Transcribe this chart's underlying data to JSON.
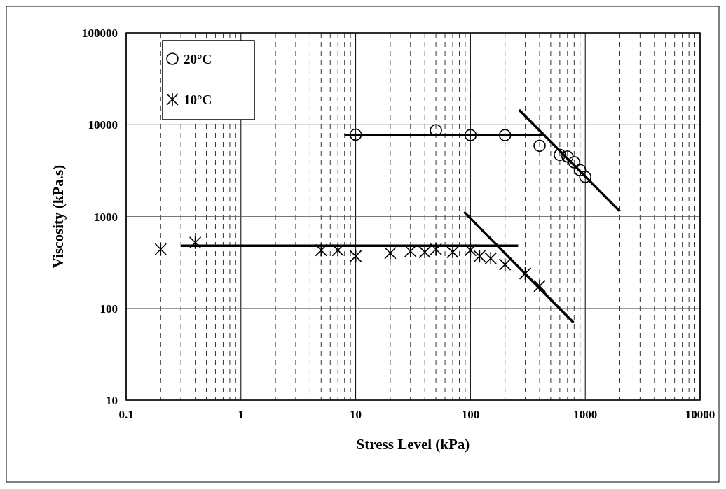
{
  "chart_data": {
    "type": "scatter",
    "xlabel": "Stress Level (kPa)",
    "ylabel": "Viscosity (kPa.s)",
    "log": "xy",
    "grid": true,
    "legend": "top left",
    "xlim": [
      0.1,
      10000
    ],
    "ylim": [
      10,
      100000
    ],
    "xticks": [
      0.1,
      {
        "value": 0.2,
        "label": null
      },
      {
        "value": 0.3,
        "label": null
      },
      {
        "value": 0.4,
        "label": null
      },
      {
        "value": 0.5,
        "label": null
      },
      {
        "value": 0.6,
        "label": null
      },
      {
        "value": 0.7,
        "label": null
      },
      {
        "value": 0.8,
        "label": null
      },
      {
        "value": 0.9,
        "label": null
      },
      1,
      {
        "value": 2,
        "label": null
      },
      {
        "value": 3,
        "label": null
      },
      {
        "value": 4,
        "label": null
      },
      {
        "value": 5,
        "label": null
      },
      {
        "value": 6,
        "label": null
      },
      {
        "value": 7,
        "label": null
      },
      {
        "value": 8,
        "label": null
      },
      {
        "value": 9,
        "label": null
      },
      10,
      {
        "value": 20,
        "label": null
      },
      {
        "value": 30,
        "label": null
      },
      {
        "value": 40,
        "label": null
      },
      {
        "value": 50,
        "label": null
      },
      {
        "value": 60,
        "label": null
      },
      {
        "value": 70,
        "label": null
      },
      {
        "value": 80,
        "label": null
      },
      {
        "value": 90,
        "label": null
      },
      100,
      {
        "value": 200,
        "label": null
      },
      {
        "value": 300,
        "label": null
      },
      {
        "value": 400,
        "label": null
      },
      {
        "value": 500,
        "label": null
      },
      {
        "value": 600,
        "label": null
      },
      {
        "value": 700,
        "label": null
      },
      {
        "value": 800,
        "label": null
      },
      {
        "value": 900,
        "label": null
      },
      1000,
      {
        "value": 2000,
        "label": null
      },
      {
        "value": 3000,
        "label": null
      },
      {
        "value": 4000,
        "label": null
      },
      {
        "value": 5000,
        "label": null
      },
      {
        "value": 6000,
        "label": null
      },
      {
        "value": 7000,
        "label": null
      },
      {
        "value": 8000,
        "label": null
      },
      {
        "value": 9000,
        "label": null
      },
      10000
    ],
    "yticks": [
      10,
      100,
      1000,
      10000,
      100000
    ],
    "series": [
      {
        "name": "20°C",
        "marker": "circle",
        "color": "#000000",
        "x": [
          10,
          50,
          100,
          200,
          400,
          600,
          700,
          800,
          900,
          1000
        ],
        "values": [
          7800,
          8700,
          7700,
          7700,
          5900,
          4700,
          4500,
          3900,
          3200,
          2700
        ]
      },
      {
        "name": "10°C",
        "marker": "cross",
        "color": "#000000",
        "x": [
          0.2,
          0.4,
          5,
          7,
          10,
          20,
          30,
          40,
          50,
          70,
          100,
          120,
          150,
          200,
          300,
          400
        ],
        "values": [
          440,
          520,
          430,
          430,
          370,
          400,
          420,
          410,
          440,
          410,
          430,
          370,
          350,
          300,
          240,
          175
        ]
      },
      {
        "type": "line",
        "color": "#000000",
        "x": [
          8,
          430
        ],
        "values": [
          7700,
          7700
        ]
      },
      {
        "type": "line",
        "color": "#000000",
        "x": [
          265,
          2000
        ],
        "values": [
          14500,
          1140
        ]
      },
      {
        "type": "line",
        "color": "#000000",
        "x": [
          0.3,
          260
        ],
        "values": [
          480,
          480
        ]
      },
      {
        "type": "line",
        "color": "#000000",
        "x": [
          88,
          790
        ],
        "values": [
          1120,
          70
        ]
      }
    ]
  }
}
